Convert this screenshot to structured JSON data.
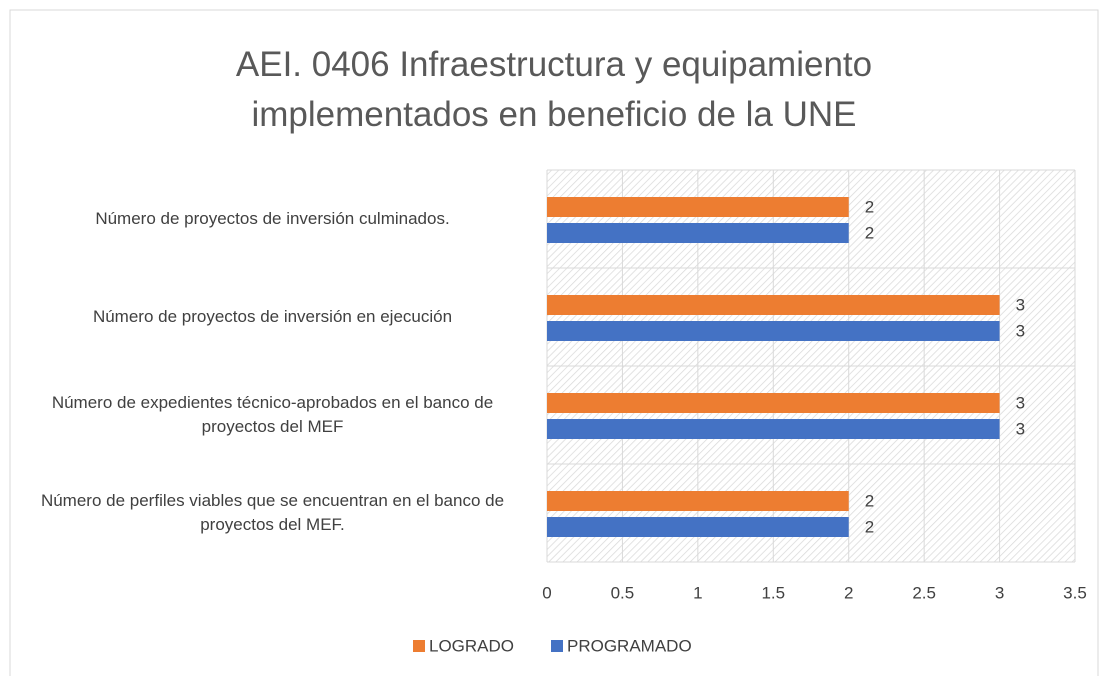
{
  "chart_data": {
    "type": "barh",
    "title": "AEI. 0406 Infraestructura y equipamiento implementados en beneficio de la UNE",
    "categories": [
      "Número de proyectos de inversión culminados.",
      "Número de proyectos de inversión en ejecución",
      "Número de expedientes técnico-aprobados en el banco de proyectos del MEF",
      "Número de perfiles viables que se encuentran en el banco de proyectos del MEF."
    ],
    "series": [
      {
        "name": "LOGRADO",
        "color": "#ed7d31",
        "values": [
          2,
          3,
          3,
          2
        ]
      },
      {
        "name": "PROGRAMADO",
        "color": "#4472c4",
        "values": [
          2,
          3,
          3,
          2
        ]
      }
    ],
    "xlim": [
      0,
      3.5
    ],
    "xticks": [
      0,
      0.5,
      1,
      1.5,
      2,
      2.5,
      3,
      3.5
    ],
    "grid": true,
    "legend": "bottom"
  }
}
